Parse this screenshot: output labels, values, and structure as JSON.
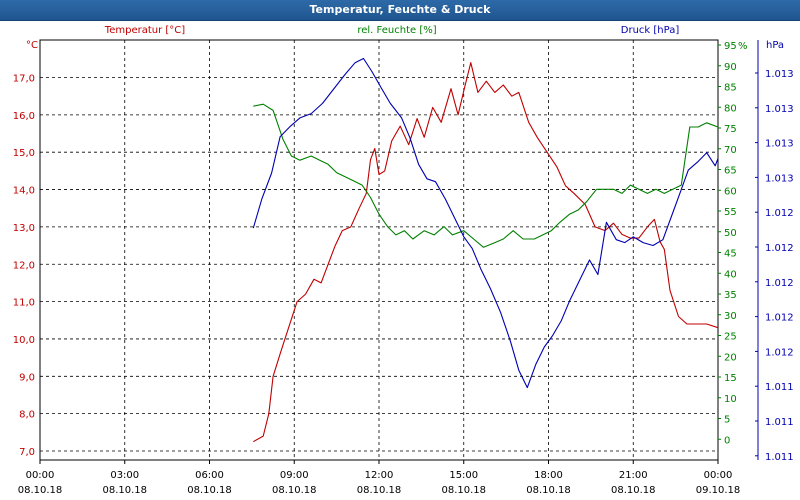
{
  "window": {
    "title": "Temperatur, Feuchte & Druck"
  },
  "chart_data": {
    "type": "line",
    "title": "Temperatur, Feuchte & Druck",
    "colors": {
      "temperature": "#c00000",
      "humidity": "#008000",
      "pressure": "#0000b0"
    },
    "axes": {
      "temperature": {
        "label": "Temperatur [°C]",
        "unit": "°C",
        "ylim": [
          6.8,
          18.0
        ],
        "ticks": [
          "17,0",
          "16,0",
          "15,0",
          "14,0",
          "13,0",
          "12,0",
          "11,0",
          "10,0",
          "9,0",
          "8,0",
          "7,0"
        ]
      },
      "humidity": {
        "label": "rel. Feuchte [%]",
        "unit": "%",
        "ylim": [
          0,
          100
        ],
        "ticks": [
          "95",
          "90",
          "85",
          "80",
          "75",
          "70",
          "65",
          "60",
          "55",
          "50",
          "45",
          "40",
          "35",
          "30",
          "25",
          "20",
          "15",
          "10",
          "5",
          "0"
        ]
      },
      "pressure": {
        "label": "Druck [hPa]",
        "unit": "hPa",
        "ticks": [
          "1.013",
          "1.013",
          "1.013",
          "1.013",
          "1.012",
          "1.012",
          "1.012",
          "1.012",
          "1.012",
          "1.011",
          "1.011",
          "1.011"
        ]
      }
    },
    "x_ticks": [
      {
        "time": "00:00",
        "date": "08.10.18"
      },
      {
        "time": "03:00",
        "date": "08.10.18"
      },
      {
        "time": "06:00",
        "date": "08.10.18"
      },
      {
        "time": "09:00",
        "date": "08.10.18"
      },
      {
        "time": "12:00",
        "date": "08.10.18"
      },
      {
        "time": "15:00",
        "date": "08.10.18"
      },
      {
        "time": "18:00",
        "date": "08.10.18"
      },
      {
        "time": "21:00",
        "date": "08.10.18"
      },
      {
        "time": "00:00",
        "date": "09.10.18"
      }
    ],
    "xlim_hours": [
      0,
      24
    ],
    "series": [
      {
        "name": "Temperatur [°C]",
        "key": "temperature",
        "points": [
          [
            7.55,
            7.25
          ],
          [
            7.9,
            7.4
          ],
          [
            8.1,
            8.0
          ],
          [
            8.25,
            9.0
          ],
          [
            8.5,
            9.6
          ],
          [
            8.8,
            10.3
          ],
          [
            9.1,
            11.0
          ],
          [
            9.4,
            11.2
          ],
          [
            9.7,
            11.6
          ],
          [
            9.95,
            11.5
          ],
          [
            10.2,
            12.0
          ],
          [
            10.45,
            12.5
          ],
          [
            10.7,
            12.9
          ],
          [
            11.0,
            13.0
          ],
          [
            11.3,
            13.5
          ],
          [
            11.55,
            13.9
          ],
          [
            11.7,
            14.8
          ],
          [
            11.85,
            15.1
          ],
          [
            12.0,
            14.4
          ],
          [
            12.2,
            14.5
          ],
          [
            12.45,
            15.3
          ],
          [
            12.75,
            15.7
          ],
          [
            13.05,
            15.2
          ],
          [
            13.35,
            15.9
          ],
          [
            13.6,
            15.4
          ],
          [
            13.9,
            16.2
          ],
          [
            14.2,
            15.8
          ],
          [
            14.55,
            16.7
          ],
          [
            14.8,
            16.0
          ],
          [
            15.05,
            16.8
          ],
          [
            15.25,
            17.4
          ],
          [
            15.5,
            16.6
          ],
          [
            15.8,
            16.9
          ],
          [
            16.1,
            16.6
          ],
          [
            16.4,
            16.8
          ],
          [
            16.7,
            16.5
          ],
          [
            16.95,
            16.6
          ],
          [
            17.3,
            15.8
          ],
          [
            17.6,
            15.4
          ],
          [
            17.95,
            15.0
          ],
          [
            18.3,
            14.6
          ],
          [
            18.6,
            14.1
          ],
          [
            18.9,
            13.9
          ],
          [
            19.3,
            13.6
          ],
          [
            19.65,
            13.0
          ],
          [
            20.0,
            12.9
          ],
          [
            20.3,
            13.1
          ],
          [
            20.6,
            12.8
          ],
          [
            20.9,
            12.7
          ],
          [
            21.2,
            12.7
          ],
          [
            21.5,
            13.0
          ],
          [
            21.75,
            13.2
          ],
          [
            21.95,
            12.6
          ],
          [
            22.1,
            12.4
          ],
          [
            22.3,
            11.3
          ],
          [
            22.6,
            10.6
          ],
          [
            22.9,
            10.4
          ],
          [
            23.3,
            10.4
          ],
          [
            23.6,
            10.4
          ],
          [
            24.0,
            10.3
          ]
        ]
      },
      {
        "name": "rel. Feuchte [%]",
        "key": "humidity",
        "points": [
          [
            7.55,
            85
          ],
          [
            7.9,
            85.5
          ],
          [
            8.25,
            84
          ],
          [
            8.6,
            77
          ],
          [
            8.9,
            73
          ],
          [
            9.2,
            72
          ],
          [
            9.6,
            73
          ],
          [
            9.9,
            72
          ],
          [
            10.2,
            71
          ],
          [
            10.5,
            69
          ],
          [
            10.8,
            68
          ],
          [
            11.1,
            67
          ],
          [
            11.4,
            66
          ],
          [
            11.7,
            63
          ],
          [
            12.0,
            59
          ],
          [
            12.3,
            56
          ],
          [
            12.6,
            54
          ],
          [
            12.9,
            55
          ],
          [
            13.2,
            53
          ],
          [
            13.6,
            55
          ],
          [
            13.95,
            54
          ],
          [
            14.3,
            56
          ],
          [
            14.6,
            54
          ],
          [
            15.0,
            55
          ],
          [
            15.35,
            53
          ],
          [
            15.7,
            51
          ],
          [
            16.05,
            52
          ],
          [
            16.4,
            53
          ],
          [
            16.75,
            55
          ],
          [
            17.1,
            53
          ],
          [
            17.5,
            53
          ],
          [
            17.8,
            54
          ],
          [
            18.1,
            55
          ],
          [
            18.4,
            57
          ],
          [
            18.75,
            59
          ],
          [
            19.05,
            60
          ],
          [
            19.35,
            62
          ],
          [
            19.7,
            65
          ],
          [
            20.0,
            65
          ],
          [
            20.3,
            65
          ],
          [
            20.6,
            64
          ],
          [
            20.9,
            66
          ],
          [
            21.2,
            65
          ],
          [
            21.5,
            64
          ],
          [
            21.8,
            65
          ],
          [
            22.1,
            64
          ],
          [
            22.4,
            65
          ],
          [
            22.7,
            66
          ],
          [
            23.0,
            80
          ],
          [
            23.3,
            80
          ],
          [
            23.6,
            81
          ],
          [
            24.0,
            80
          ]
        ]
      },
      {
        "name": "Druck [hPa]",
        "key": "pressure",
        "note": "plotted on a relative scale matching the right axis",
        "points": [
          [
            7.55,
            22
          ],
          [
            7.85,
            42
          ],
          [
            8.2,
            60
          ],
          [
            8.5,
            85
          ],
          [
            8.85,
            92
          ],
          [
            9.2,
            98
          ],
          [
            9.6,
            101
          ],
          [
            10.0,
            108
          ],
          [
            10.4,
            118
          ],
          [
            10.8,
            128
          ],
          [
            11.15,
            136
          ],
          [
            11.45,
            139
          ],
          [
            11.75,
            130
          ],
          [
            12.1,
            118
          ],
          [
            12.4,
            108
          ],
          [
            12.8,
            98
          ],
          [
            13.1,
            84
          ],
          [
            13.4,
            66
          ],
          [
            13.7,
            56
          ],
          [
            14.0,
            54
          ],
          [
            14.35,
            42
          ],
          [
            14.7,
            28
          ],
          [
            15.0,
            16
          ],
          [
            15.3,
            8
          ],
          [
            15.6,
            -6
          ],
          [
            15.95,
            -20
          ],
          [
            16.3,
            -36
          ],
          [
            16.65,
            -56
          ],
          [
            16.95,
            -76
          ],
          [
            17.25,
            -88
          ],
          [
            17.55,
            -72
          ],
          [
            17.85,
            -60
          ],
          [
            18.15,
            -52
          ],
          [
            18.45,
            -42
          ],
          [
            18.75,
            -28
          ],
          [
            19.1,
            -14
          ],
          [
            19.45,
            0
          ],
          [
            19.75,
            -10
          ],
          [
            20.05,
            26
          ],
          [
            20.4,
            14
          ],
          [
            20.7,
            12
          ],
          [
            21.0,
            16
          ],
          [
            21.35,
            12
          ],
          [
            21.7,
            10
          ],
          [
            22.05,
            14
          ],
          [
            22.35,
            30
          ],
          [
            22.65,
            46
          ],
          [
            22.95,
            62
          ],
          [
            23.3,
            68
          ],
          [
            23.6,
            74
          ],
          [
            23.9,
            65
          ],
          [
            24.0,
            70
          ]
        ]
      }
    ]
  }
}
